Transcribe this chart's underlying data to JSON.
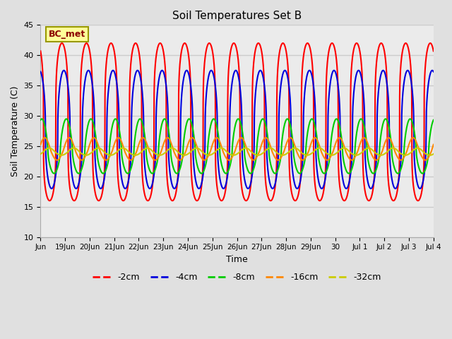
{
  "title": "Soil Temperatures Set B",
  "xlabel": "Time",
  "ylabel": "Soil Temperature (C)",
  "ylim": [
    10,
    45
  ],
  "xlim_days": [
    0,
    16
  ],
  "annotation": "BC_met",
  "series_order": [
    "-2cm",
    "-4cm",
    "-8cm",
    "-16cm",
    "-32cm"
  ],
  "series": {
    "-2cm": {
      "color": "#FF0000",
      "mean": 27.5,
      "amp_day": 14.5,
      "amp_night": 11.5,
      "phase": 0.62,
      "lw": 1.5,
      "peak_sharpness": 4.0
    },
    "-4cm": {
      "color": "#0000DD",
      "mean": 27.0,
      "amp_day": 10.5,
      "amp_night": 9.0,
      "phase": 0.7,
      "lw": 1.5,
      "peak_sharpness": 2.5
    },
    "-8cm": {
      "color": "#00CC00",
      "mean": 24.0,
      "amp_day": 5.5,
      "amp_night": 3.5,
      "phase": 0.8,
      "lw": 1.5,
      "peak_sharpness": 1.5
    },
    "-16cm": {
      "color": "#FF8800",
      "mean": 24.2,
      "amp_day": 2.2,
      "amp_night": 1.5,
      "phase": 0.92,
      "lw": 1.5,
      "peak_sharpness": 1.0
    },
    "-32cm": {
      "color": "#CCCC00",
      "mean": 24.0,
      "amp_day": 0.7,
      "amp_night": 0.5,
      "phase": 0.1,
      "lw": 1.5,
      "peak_sharpness": 1.0
    }
  },
  "tick_labels": [
    "Jun",
    "19Jun",
    "20Jun",
    "21Jun",
    "22Jun",
    "23Jun",
    "24Jun",
    "25Jun",
    "26Jun",
    "27Jun",
    "28Jun",
    "29Jun",
    "30",
    "Jul 1",
    "Jul 2",
    "Jul 3",
    "Jul 4"
  ],
  "tick_positions": [
    0,
    1,
    2,
    3,
    4,
    5,
    6,
    7,
    8,
    9,
    10,
    11,
    12,
    13,
    14,
    15,
    16
  ],
  "yticks": [
    10,
    15,
    20,
    25,
    30,
    35,
    40,
    45
  ],
  "grid_color": "#cccccc",
  "bg_color": "#e0e0e0",
  "plot_bg": "#ebebeb"
}
